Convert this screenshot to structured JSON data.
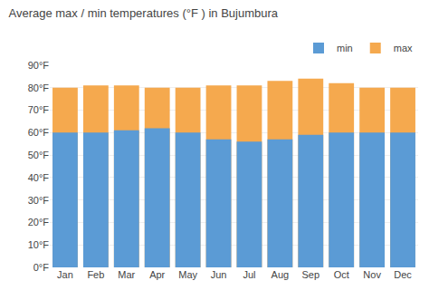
{
  "chart_data": {
    "type": "bar",
    "title": "Average max / min temperatures (°F ) in Bujumbura",
    "categories": [
      "Jan",
      "Feb",
      "Mar",
      "Apr",
      "May",
      "Jun",
      "Jul",
      "Aug",
      "Sep",
      "Oct",
      "Nov",
      "Dec"
    ],
    "series": [
      {
        "name": "min",
        "color": "#5b9bd5",
        "values": [
          60,
          60,
          61,
          62,
          60,
          57,
          56,
          57,
          59,
          60,
          60,
          60
        ]
      },
      {
        "name": "max",
        "color": "#f5a94e",
        "values": [
          80,
          81,
          81,
          80,
          80,
          81,
          81,
          83,
          84,
          82,
          80,
          80
        ]
      }
    ],
    "ylim": [
      0,
      90
    ],
    "yticks": [
      {
        "value": 0,
        "label": "0°F"
      },
      {
        "value": 10,
        "label": "10°F"
      },
      {
        "value": 20,
        "label": "20°F"
      },
      {
        "value": 30,
        "label": "30°F"
      },
      {
        "value": 40,
        "label": "40°F"
      },
      {
        "value": 50,
        "label": "50°F"
      },
      {
        "value": 60,
        "label": "60°F"
      },
      {
        "value": 70,
        "label": "70°F"
      },
      {
        "value": 80,
        "label": "80°F"
      },
      {
        "value": 90,
        "label": "90°F"
      }
    ],
    "grid": true,
    "legend": "upper right"
  }
}
